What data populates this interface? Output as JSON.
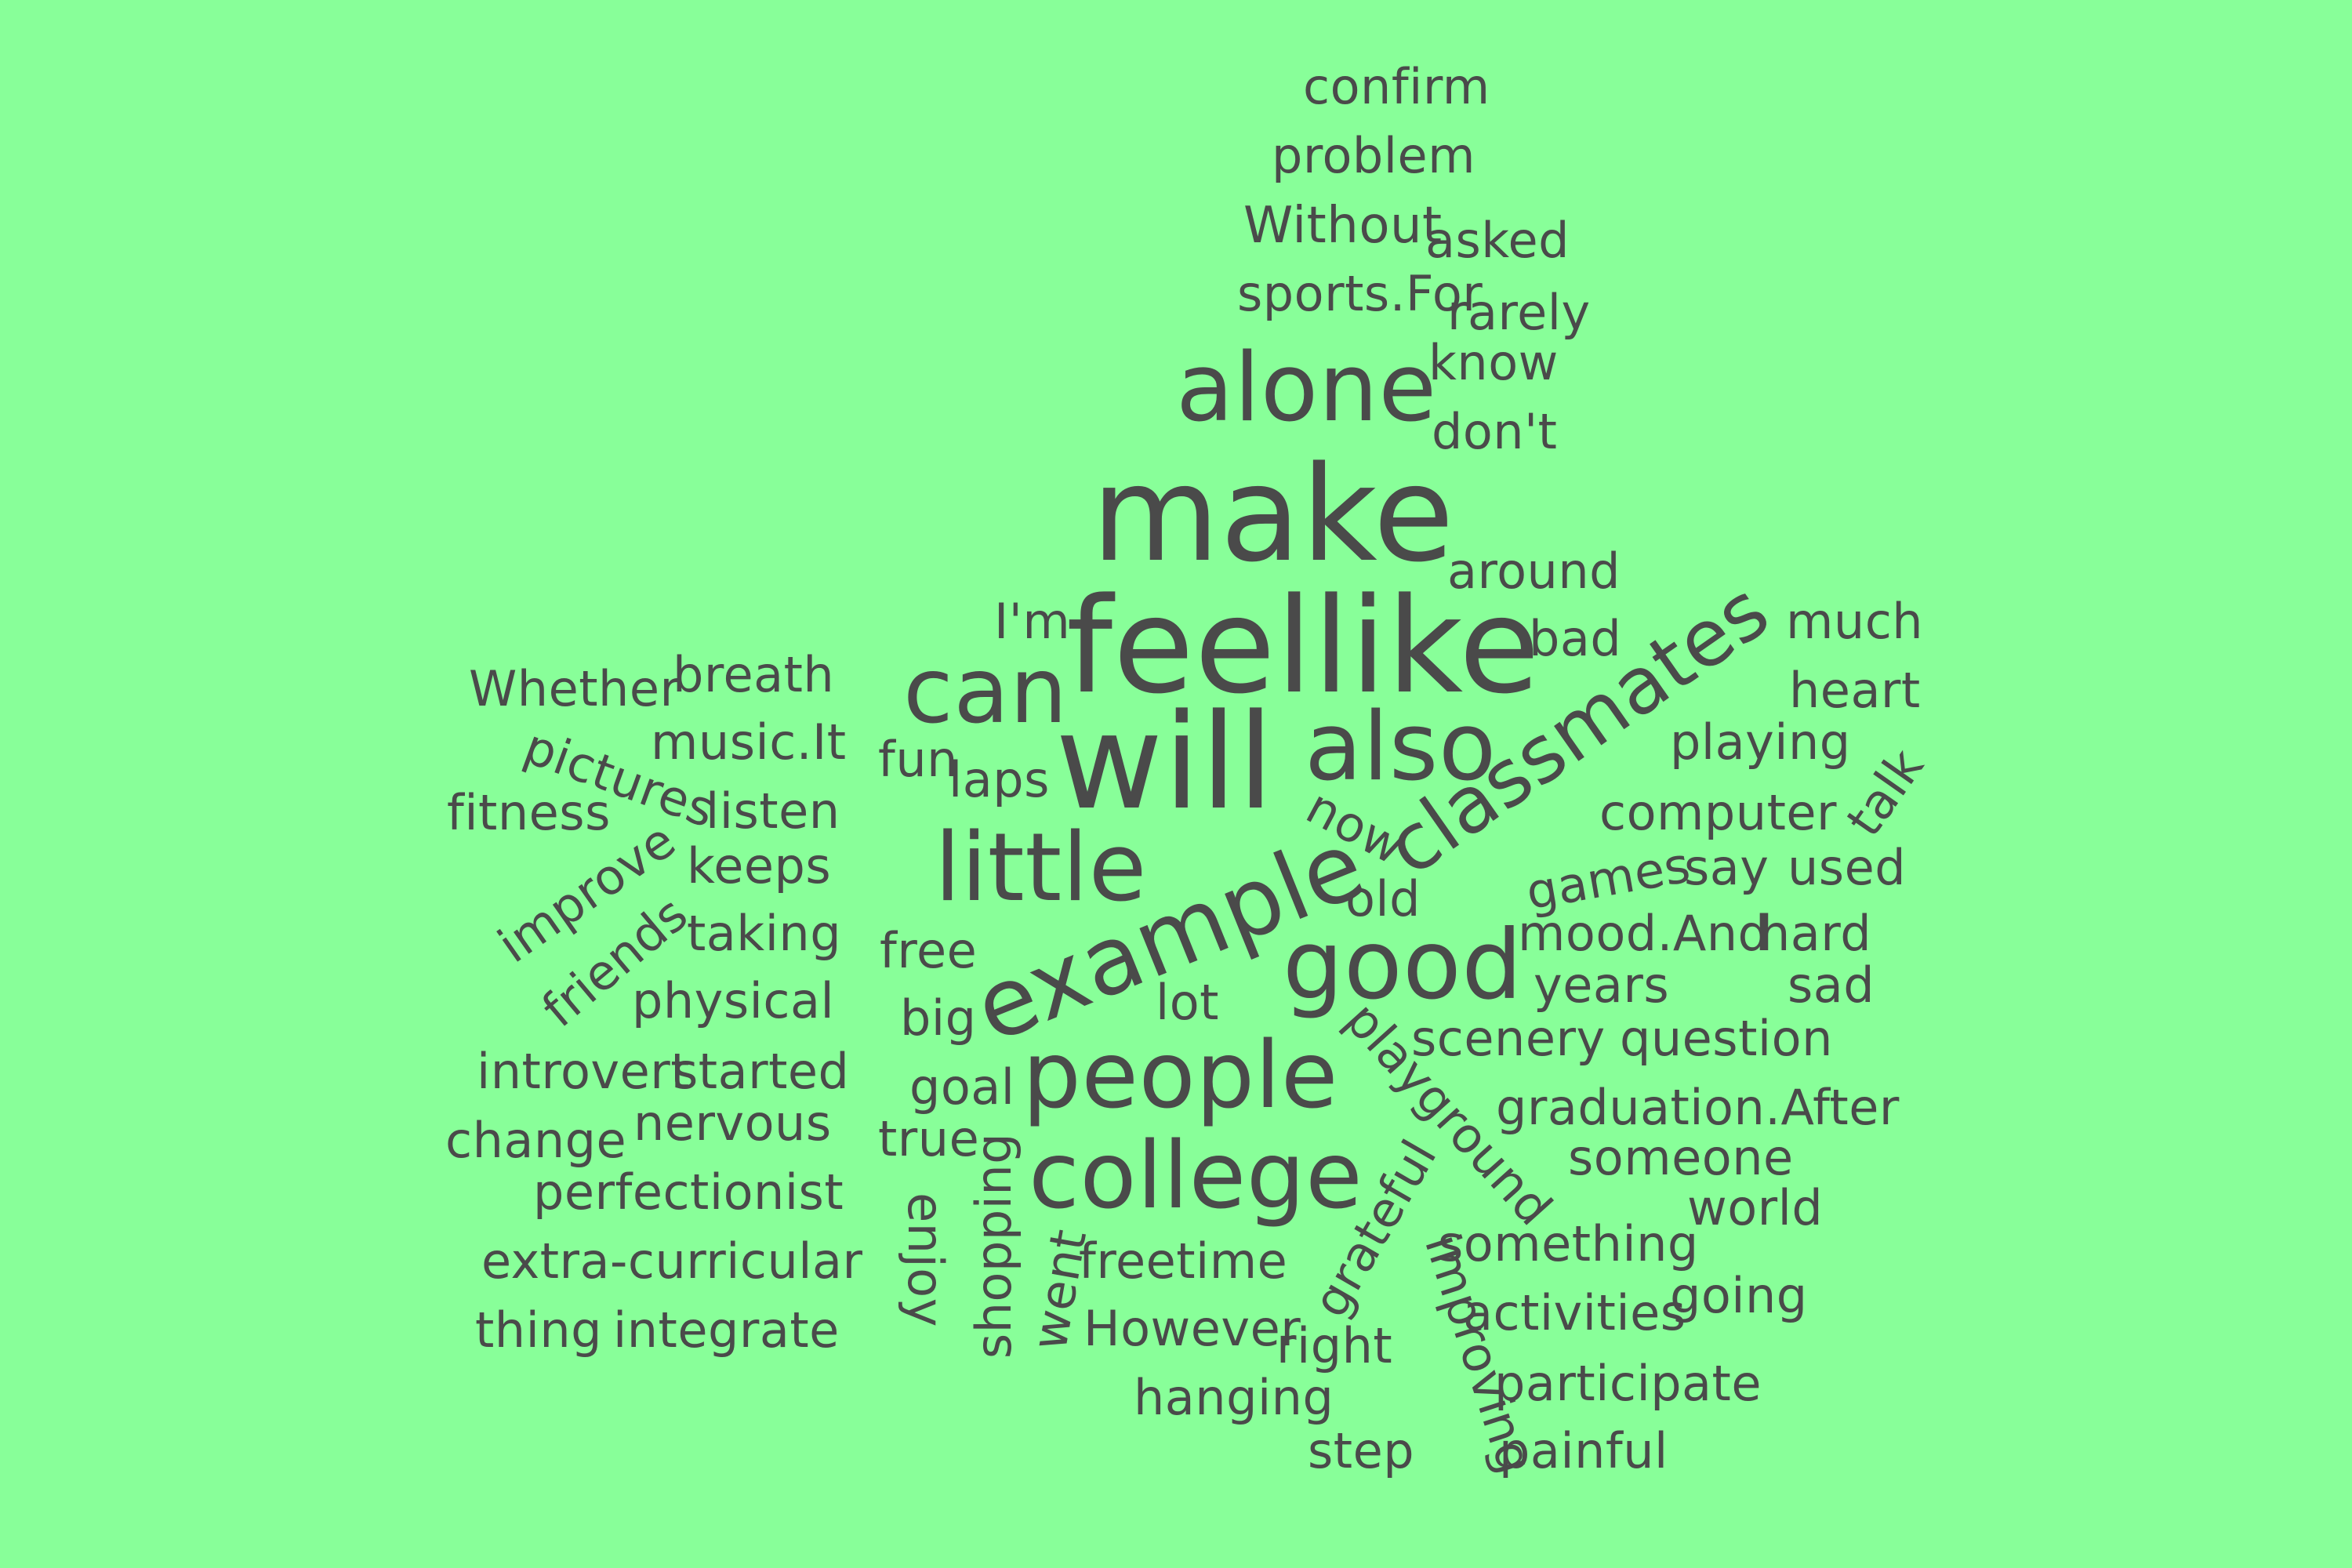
{
  "background": "#88FF99",
  "text_color": "#4A4A4A",
  "words": [
    {
      "text": "confirm"
    },
    {
      "text": "problem"
    },
    {
      "text": "Without"
    },
    {
      "text": "asked"
    },
    {
      "text": "sports.For"
    },
    {
      "text": "rarely"
    },
    {
      "text": "know"
    },
    {
      "text": "alone"
    },
    {
      "text": "don't"
    },
    {
      "text": "make"
    },
    {
      "text": "around"
    },
    {
      "text": "classmates"
    },
    {
      "text": "I'm"
    },
    {
      "text": "feellike"
    },
    {
      "text": "bad"
    },
    {
      "text": "much"
    },
    {
      "text": "Whether"
    },
    {
      "text": "breath"
    },
    {
      "text": "can"
    },
    {
      "text": "heart"
    },
    {
      "text": "music.It"
    },
    {
      "text": "also"
    },
    {
      "text": "playing"
    },
    {
      "text": "pictures"
    },
    {
      "text": "fun"
    },
    {
      "text": "laps"
    },
    {
      "text": "will"
    },
    {
      "text": "talk"
    },
    {
      "text": "fitness"
    },
    {
      "text": "listen"
    },
    {
      "text": "now"
    },
    {
      "text": "computer"
    },
    {
      "text": "improve"
    },
    {
      "text": "keeps"
    },
    {
      "text": "little"
    },
    {
      "text": "games"
    },
    {
      "text": "say"
    },
    {
      "text": "used"
    },
    {
      "text": "old"
    },
    {
      "text": "friends"
    },
    {
      "text": "taking"
    },
    {
      "text": "example"
    },
    {
      "text": "mood.And"
    },
    {
      "text": "hard"
    },
    {
      "text": "free"
    },
    {
      "text": "good"
    },
    {
      "text": "years"
    },
    {
      "text": "sad"
    },
    {
      "text": "physical"
    },
    {
      "text": "big"
    },
    {
      "text": "lot"
    },
    {
      "text": "scenery"
    },
    {
      "text": "question"
    },
    {
      "text": "introvert"
    },
    {
      "text": "started"
    },
    {
      "text": "people"
    },
    {
      "text": "goal"
    },
    {
      "text": "playground"
    },
    {
      "text": "graduation.After"
    },
    {
      "text": "change"
    },
    {
      "text": "nervous"
    },
    {
      "text": "true"
    },
    {
      "text": "college"
    },
    {
      "text": "someone"
    },
    {
      "text": "perfectionist"
    },
    {
      "text": "shopping"
    },
    {
      "text": "enjoy"
    },
    {
      "text": "world"
    },
    {
      "text": "grateful"
    },
    {
      "text": "extra-curricular"
    },
    {
      "text": "went"
    },
    {
      "text": "freetime"
    },
    {
      "text": "something"
    },
    {
      "text": "improving"
    },
    {
      "text": "going"
    },
    {
      "text": "activities"
    },
    {
      "text": "thing"
    },
    {
      "text": "integrate"
    },
    {
      "text": "However"
    },
    {
      "text": "right"
    },
    {
      "text": "participate"
    },
    {
      "text": "hanging"
    },
    {
      "text": "step"
    },
    {
      "text": "painful"
    }
  ]
}
